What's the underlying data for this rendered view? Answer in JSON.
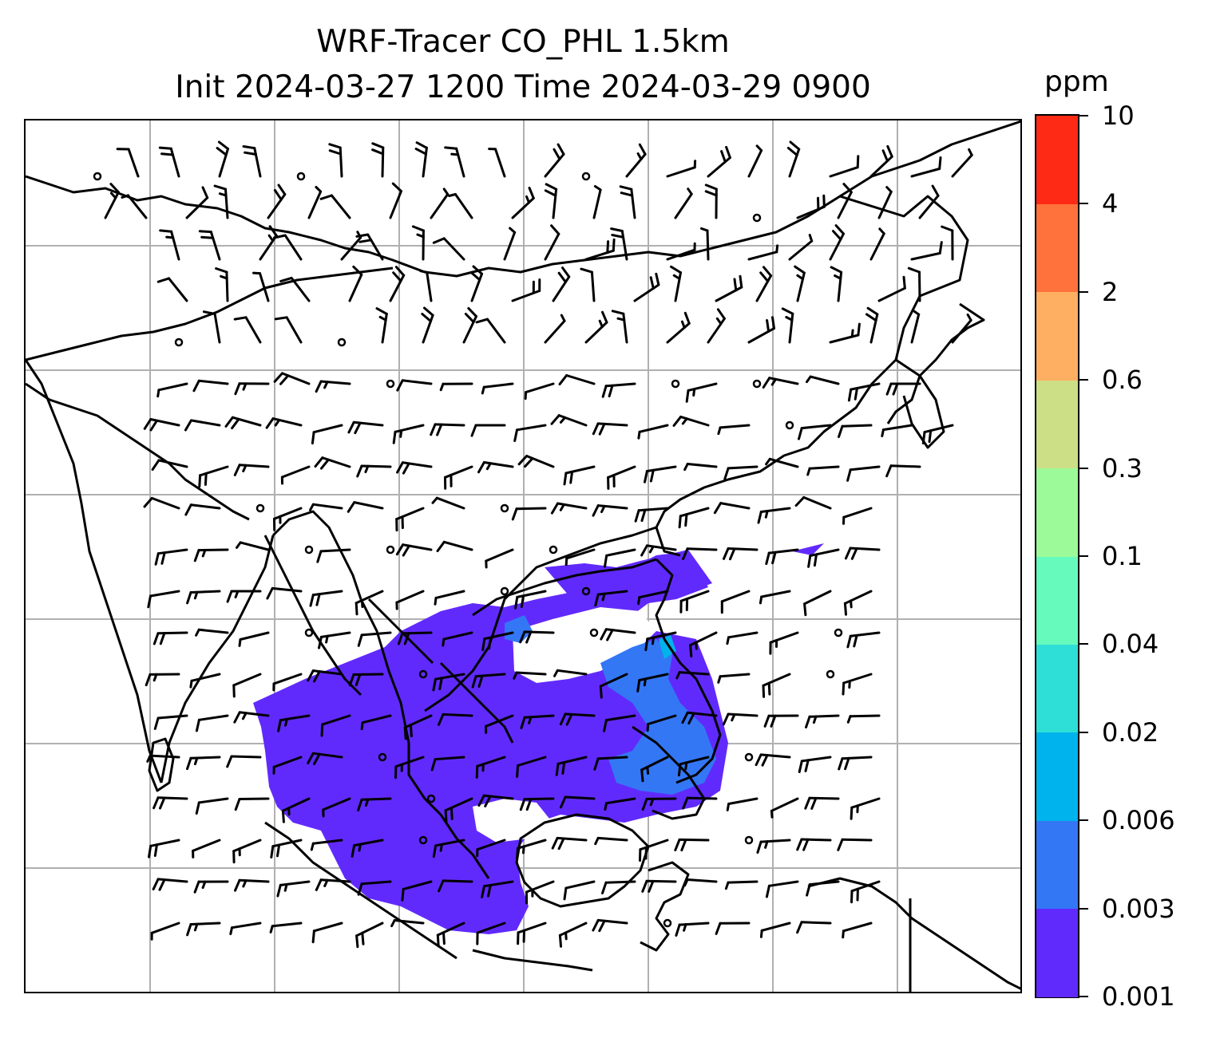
{
  "title": {
    "line1": "WRF-Tracer CO_PHL 1.5km",
    "line2": "Init 2024-03-27 1200 Time 2024-03-29 0900"
  },
  "colorbar": {
    "unit": "ppm",
    "levels": [
      "0.001",
      "0.003",
      "0.006",
      "0.02",
      "0.04",
      "0.1",
      "0.3",
      "0.6",
      "2",
      "4",
      "10"
    ],
    "colors": [
      "#612afc",
      "#3377f5",
      "#00b3ec",
      "#2ddfd6",
      "#66fbbd",
      "#9cfb98",
      "#cddf86",
      "#ffaf61",
      "#ff723b",
      "#ff2a16"
    ]
  },
  "map": {
    "gridlines": true,
    "coastline_color": "#000000",
    "tracer_plume_main_color": "#612afc",
    "tracer_plume_secondary_color": "#3377f5",
    "wind_barb_color": "#000000"
  }
}
